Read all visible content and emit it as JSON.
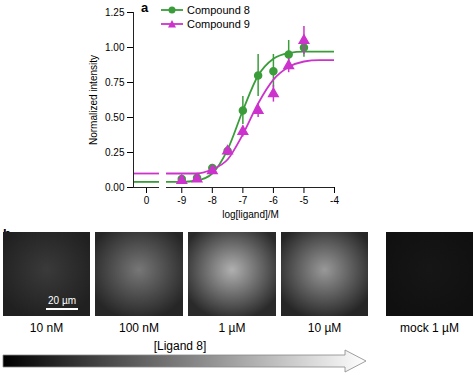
{
  "chart_data": {
    "type": "scatter",
    "title": "a",
    "x_label": "log[ligand]/M",
    "y_label": "Normalized intensity",
    "xlim": [
      -9.5,
      -4
    ],
    "xticks": [
      -9,
      -8,
      -7,
      -6,
      -5,
      -4
    ],
    "break_xlim": [
      -0.5,
      0.5
    ],
    "break_xticks": [
      0
    ],
    "ylim": [
      0,
      1.25
    ],
    "yticks": [
      {
        "value": 0,
        "label": "0.00"
      },
      {
        "value": 0.25,
        "label": "0.25"
      },
      {
        "value": 0.5,
        "label": "0.50"
      },
      {
        "value": 0.75,
        "label": "0.75"
      },
      {
        "value": 1,
        "label": "1.00"
      },
      {
        "value": 1.25,
        "label": "1.25"
      }
    ],
    "legend": "top-left",
    "series": [
      {
        "name": "Compound 8",
        "color": "#3a9d3a",
        "marker": "circle",
        "x": [
          -9,
          -8.5,
          -8,
          -7.5,
          -7,
          -6.5,
          -6,
          -5.5,
          -5
        ],
        "values": [
          0.06,
          0.07,
          0.14,
          0.26,
          0.55,
          0.8,
          0.83,
          0.95,
          1.0
        ],
        "errors": [
          0.01,
          0.01,
          0.02,
          0.03,
          0.1,
          0.15,
          0.12,
          0.1,
          0.07
        ],
        "fit_at_zero": 0.04,
        "fit_x": [
          -9.5,
          -9,
          -8.5,
          -8,
          -7.5,
          -7,
          -6.5,
          -6,
          -5.5,
          -5,
          -4.5,
          -4
        ],
        "fit_values": [
          0.04,
          0.04,
          0.05,
          0.1,
          0.27,
          0.55,
          0.8,
          0.92,
          0.96,
          0.97,
          0.97,
          0.97
        ]
      },
      {
        "name": "Compound 9",
        "color": "#cc33cc",
        "marker": "triangle",
        "x": [
          -9,
          -8.5,
          -8,
          -7.5,
          -7,
          -6.5,
          -6,
          -5.5,
          -5
        ],
        "values": [
          0.05,
          0.06,
          0.12,
          0.26,
          0.4,
          0.55,
          0.67,
          0.87,
          1.05
        ],
        "errors": [
          0.01,
          0.01,
          0.02,
          0.03,
          0.04,
          0.05,
          0.06,
          0.05,
          0.1
        ],
        "fit_at_zero": 0.1,
        "fit_x": [
          -9.5,
          -9,
          -8.5,
          -8,
          -7.5,
          -7,
          -6.5,
          -6,
          -5.5,
          -5,
          -4.5,
          -4
        ],
        "fit_values": [
          0.1,
          0.1,
          0.1,
          0.13,
          0.2,
          0.38,
          0.6,
          0.77,
          0.86,
          0.9,
          0.91,
          0.91
        ]
      }
    ]
  },
  "panel_b": {
    "label": "b",
    "scale_bar": "20 µm",
    "images": [
      "10 nM",
      "100 nM",
      "1 µM",
      "10 µM",
      "mock 1 µM"
    ],
    "arrow_label": "[Ligand 8]"
  }
}
